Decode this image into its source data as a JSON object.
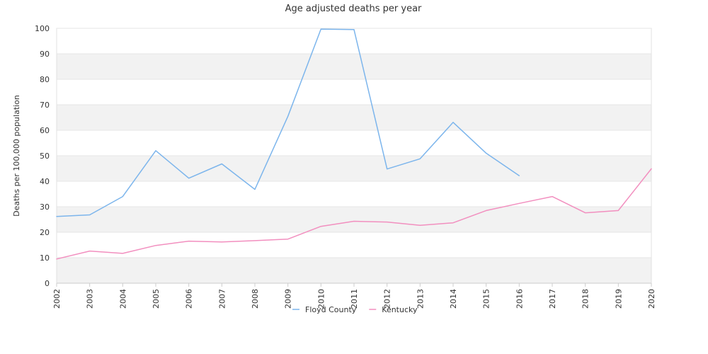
{
  "chart_data": {
    "type": "line",
    "title": "Age adjusted deaths per year",
    "xlabel": "",
    "ylabel": "Deaths per 100,000 population",
    "x": [
      "2002",
      "2003",
      "2004",
      "2005",
      "2006",
      "2007",
      "2008",
      "2009",
      "2010",
      "2011",
      "2012",
      "2013",
      "2014",
      "2015",
      "2016",
      "2017",
      "2018",
      "2019",
      "2020"
    ],
    "ylim": [
      0,
      100
    ],
    "yticks": [
      0,
      10,
      20,
      30,
      40,
      50,
      60,
      70,
      80,
      90,
      100
    ],
    "grid": "horizontal alternating bands",
    "legend_position": "bottom-center",
    "series": [
      {
        "name": "Floyd County",
        "color": "#7cb5ec",
        "values": [
          26.2,
          26.8,
          34.0,
          52.0,
          41.2,
          46.8,
          36.8,
          65.5,
          99.7,
          99.5,
          44.8,
          48.8,
          63.1,
          51.0,
          42.2,
          null,
          null,
          null,
          null
        ]
      },
      {
        "name": "Kentucky",
        "color": "#f28fbf",
        "values": [
          9.5,
          12.6,
          11.7,
          14.8,
          16.5,
          16.2,
          16.7,
          17.3,
          22.3,
          24.3,
          24.0,
          22.7,
          23.7,
          28.5,
          31.3,
          34.0,
          27.6,
          28.5,
          44.9
        ]
      }
    ]
  }
}
